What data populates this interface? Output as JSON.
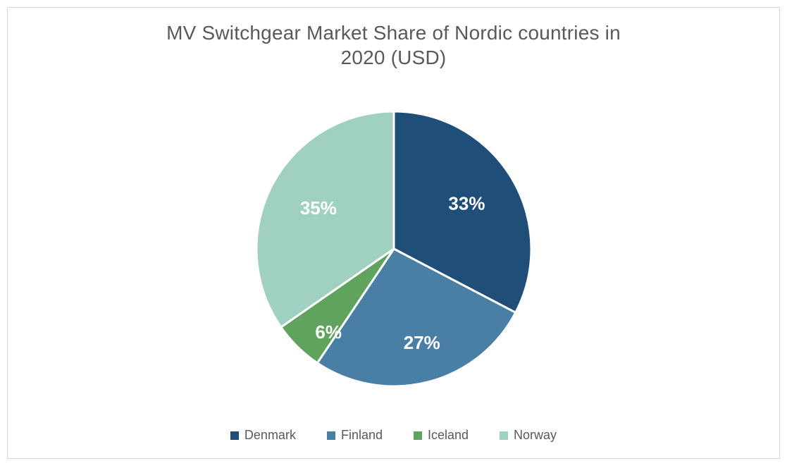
{
  "chart": {
    "type": "pie",
    "title_line1": "MV Switchgear Market Share of Nordic countries in",
    "title_line2": "2020 (USD)",
    "title_fontsize": 28,
    "title_color": "#595959",
    "background_color": "#ffffff",
    "border_color": "#d9d9d9",
    "radius": 195,
    "stroke_color": "#ffffff",
    "stroke_width": 3,
    "start_angle_deg": -90,
    "direction": "clockwise",
    "label_fontsize": 26,
    "label_font_weight": "700",
    "label_color": "#ffffff",
    "label_radius_factor": 0.62,
    "slices": [
      {
        "name": "Denmark",
        "value": 33,
        "label": "33%",
        "color": "#1f4e79",
        "label_nudge_x": 0,
        "label_nudge_y": 0
      },
      {
        "name": "Finland",
        "value": 27,
        "label": "27%",
        "color": "#4a7fa5",
        "label_nudge_x": 10,
        "label_nudge_y": 18
      },
      {
        "name": "Iceland",
        "value": 6,
        "label": "6%",
        "color": "#5fa35f",
        "label_nudge_x": -8,
        "label_nudge_y": 34
      },
      {
        "name": "Norway",
        "value": 35,
        "label": "35%",
        "color": "#9fd0c0",
        "label_nudge_x": 0,
        "label_nudge_y": 0
      }
    ],
    "legend": {
      "fontsize": 18,
      "color": "#595959",
      "swatch_size": 12,
      "items": [
        {
          "label": "Denmark",
          "color": "#1f4e79"
        },
        {
          "label": "Finland",
          "color": "#4a7fa5"
        },
        {
          "label": "Iceland",
          "color": "#5fa35f"
        },
        {
          "label": "Norway",
          "color": "#9fd0c0"
        }
      ]
    }
  }
}
